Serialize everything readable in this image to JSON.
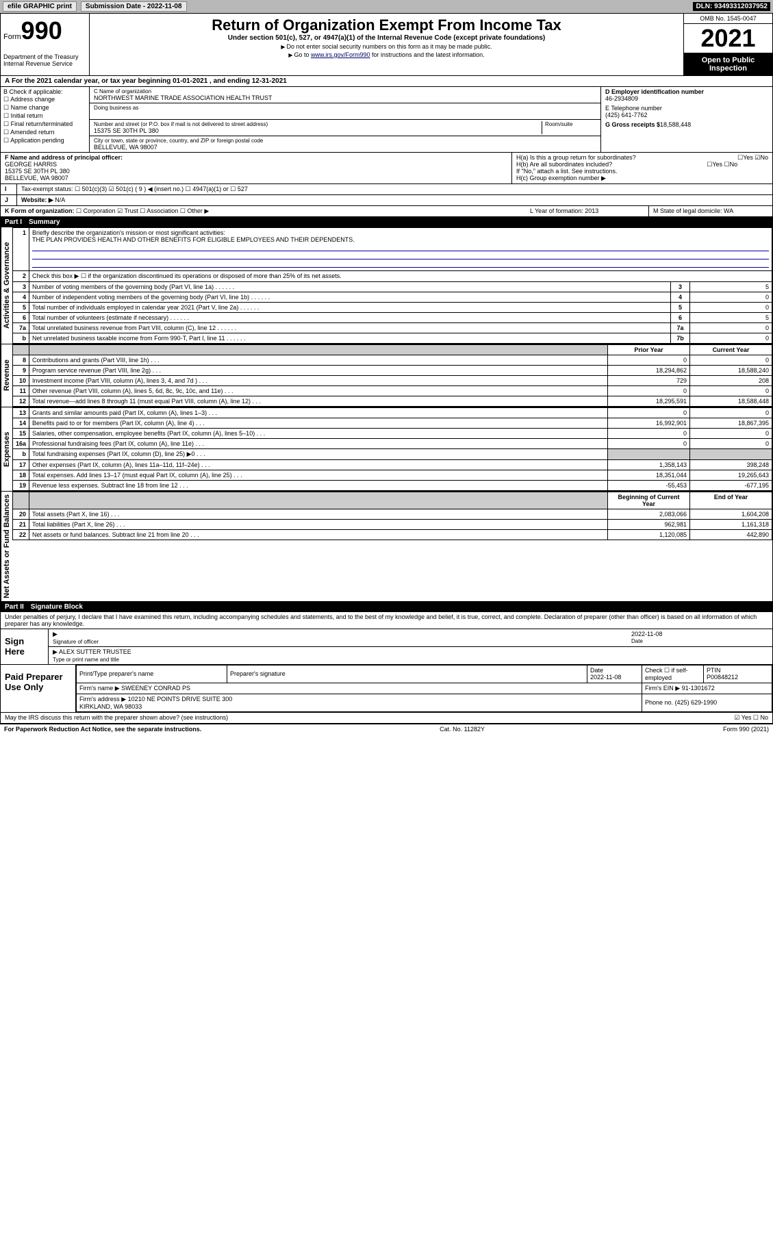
{
  "topbar": {
    "efile": "efile GRAPHIC print",
    "subdate_label": "Submission Date - 2022-11-08",
    "dln": "DLN: 93493312037952"
  },
  "header": {
    "form_label": "Form",
    "form_num": "990",
    "title": "Return of Organization Exempt From Income Tax",
    "subtitle": "Under section 501(c), 527, or 4947(a)(1) of the Internal Revenue Code (except private foundations)",
    "note1": "Do not enter social security numbers on this form as it may be made public.",
    "note2_pre": "Go to ",
    "note2_link": "www.irs.gov/Form990",
    "note2_post": " for instructions and the latest information.",
    "dept": "Department of the Treasury\nInternal Revenue Service",
    "omb": "OMB No. 1545-0047",
    "year": "2021",
    "open": "Open to Public Inspection"
  },
  "row_a": "For the 2021 calendar year, or tax year beginning 01-01-2021   , and ending 12-31-2021",
  "col_b": {
    "label": "B Check if applicable:",
    "opts": [
      "Address change",
      "Name change",
      "Initial return",
      "Final return/terminated",
      "Amended return",
      "Application pending"
    ]
  },
  "col_c": {
    "name_label": "C Name of organization",
    "name": "NORTHWEST MARINE TRADE ASSOCIATION HEALTH TRUST",
    "dba_label": "Doing business as",
    "addr_label": "Number and street (or P.O. box if mail is not delivered to street address)",
    "room_label": "Room/suite",
    "addr": "15375 SE 30TH PL 380",
    "city_label": "City or town, state or province, country, and ZIP or foreign postal code",
    "city": "BELLEVUE, WA  98007"
  },
  "col_d": {
    "ein_label": "D Employer identification number",
    "ein": "46-2934809",
    "tel_label": "E Telephone number",
    "tel": "(425) 641-7762",
    "gross_label": "G Gross receipts $",
    "gross": "18,588,448"
  },
  "row_f": {
    "label": "F  Name and address of principal officer:",
    "name": "GEORGE HARRIS",
    "addr1": "15375 SE 30TH PL 380",
    "addr2": "BELLEVUE, WA  98007"
  },
  "row_h": {
    "ha": "H(a)  Is this a group return for subordinates?",
    "hb": "H(b)  Are all subordinates included?",
    "hb_note": "If \"No,\" attach a list. See instructions.",
    "hc": "H(c)  Group exemption number ▶",
    "yes": "Yes",
    "no": "No"
  },
  "row_i": {
    "label": "Tax-exempt status:",
    "o1": "501(c)(3)",
    "o2": "501(c) ( 9 ) ◀ (insert no.)",
    "o3": "4947(a)(1) or",
    "o4": "527"
  },
  "row_j": {
    "label": "Website: ▶",
    "val": "N/A"
  },
  "row_k": {
    "label": "K Form of organization:",
    "o1": "Corporation",
    "o2": "Trust",
    "o3": "Association",
    "o4": "Other ▶"
  },
  "row_l": {
    "label": "L Year of formation: 2013"
  },
  "row_m": {
    "label": "M State of legal domicile: WA"
  },
  "part1": {
    "num": "Part I",
    "title": "Summary"
  },
  "summary": {
    "q1": "Briefly describe the organization's mission or most significant activities:",
    "q1a": "THE PLAN PROVIDES HEALTH AND OTHER BENEFITS FOR ELIGIBLE EMPLOYEES AND THEIR DEPENDENTS.",
    "q2": "Check this box ▶ ☐  if the organization discontinued its operations or disposed of more than 25% of its net assets.",
    "rows_single": [
      {
        "n": "3",
        "d": "Number of voting members of the governing body (Part VI, line 1a)",
        "b": "3",
        "v": "5"
      },
      {
        "n": "4",
        "d": "Number of independent voting members of the governing body (Part VI, line 1b)",
        "b": "4",
        "v": "0"
      },
      {
        "n": "5",
        "d": "Total number of individuals employed in calendar year 2021 (Part V, line 2a)",
        "b": "5",
        "v": "0"
      },
      {
        "n": "6",
        "d": "Total number of volunteers (estimate if necessary)",
        "b": "6",
        "v": "5"
      },
      {
        "n": "7a",
        "d": "Total unrelated business revenue from Part VIII, column (C), line 12",
        "b": "7a",
        "v": "0"
      },
      {
        "n": "b",
        "d": "Net unrelated business taxable income from Form 990-T, Part I, line 11",
        "b": "7b",
        "v": "0"
      }
    ],
    "col_hdr_prior": "Prior Year",
    "col_hdr_curr": "Current Year",
    "rows_rev": [
      {
        "n": "8",
        "d": "Contributions and grants (Part VIII, line 1h)",
        "p": "0",
        "c": "0"
      },
      {
        "n": "9",
        "d": "Program service revenue (Part VIII, line 2g)",
        "p": "18,294,862",
        "c": "18,588,240"
      },
      {
        "n": "10",
        "d": "Investment income (Part VIII, column (A), lines 3, 4, and 7d )",
        "p": "729",
        "c": "208"
      },
      {
        "n": "11",
        "d": "Other revenue (Part VIII, column (A), lines 5, 6d, 8c, 9c, 10c, and 11e)",
        "p": "0",
        "c": "0"
      },
      {
        "n": "12",
        "d": "Total revenue—add lines 8 through 11 (must equal Part VIII, column (A), line 12)",
        "p": "18,295,591",
        "c": "18,588,448"
      }
    ],
    "rows_exp": [
      {
        "n": "13",
        "d": "Grants and similar amounts paid (Part IX, column (A), lines 1–3)",
        "p": "0",
        "c": "0"
      },
      {
        "n": "14",
        "d": "Benefits paid to or for members (Part IX, column (A), line 4)",
        "p": "16,992,901",
        "c": "18,867,395"
      },
      {
        "n": "15",
        "d": "Salaries, other compensation, employee benefits (Part IX, column (A), lines 5–10)",
        "p": "0",
        "c": "0"
      },
      {
        "n": "16a",
        "d": "Professional fundraising fees (Part IX, column (A), line 11e)",
        "p": "0",
        "c": "0"
      },
      {
        "n": "b",
        "d": "Total fundraising expenses (Part IX, column (D), line 25) ▶0",
        "p": "",
        "c": "",
        "gray": true
      },
      {
        "n": "17",
        "d": "Other expenses (Part IX, column (A), lines 11a–11d, 11f–24e)",
        "p": "1,358,143",
        "c": "398,248"
      },
      {
        "n": "18",
        "d": "Total expenses. Add lines 13–17 (must equal Part IX, column (A), line 25)",
        "p": "18,351,044",
        "c": "19,265,643"
      },
      {
        "n": "19",
        "d": "Revenue less expenses. Subtract line 18 from line 12",
        "p": "-55,453",
        "c": "-677,195"
      }
    ],
    "col_hdr_beg": "Beginning of Current Year",
    "col_hdr_end": "End of Year",
    "rows_net": [
      {
        "n": "20",
        "d": "Total assets (Part X, line 16)",
        "p": "2,083,066",
        "c": "1,604,208"
      },
      {
        "n": "21",
        "d": "Total liabilities (Part X, line 26)",
        "p": "962,981",
        "c": "1,161,318"
      },
      {
        "n": "22",
        "d": "Net assets or fund balances. Subtract line 21 from line 20",
        "p": "1,120,085",
        "c": "442,890"
      }
    ]
  },
  "vlabels": {
    "ag": "Activities & Governance",
    "rev": "Revenue",
    "exp": "Expenses",
    "net": "Net Assets or Fund Balances"
  },
  "part2": {
    "num": "Part II",
    "title": "Signature Block"
  },
  "sig": {
    "penalty": "Under penalties of perjury, I declare that I have examined this return, including accompanying schedules and statements, and to the best of my knowledge and belief, it is true, correct, and complete. Declaration of preparer (other than officer) is based on all information of which preparer has any knowledge.",
    "sign_here": "Sign Here",
    "sig_officer": "Signature of officer",
    "date": "Date",
    "sig_date": "2022-11-08",
    "name_title": "ALEX SUTTER  TRUSTEE",
    "name_title_label": "Type or print name and title",
    "paid": "Paid Preparer Use Only",
    "h1": "Print/Type preparer's name",
    "h2": "Preparer's signature",
    "h3": "Date",
    "h3v": "2022-11-08",
    "h4": "Check ☐ if self-employed",
    "h5": "PTIN",
    "h5v": "P00848212",
    "firm_name_l": "Firm's name  ▶",
    "firm_name": "SWEENEY CONRAD PS",
    "firm_ein_l": "Firm's EIN ▶",
    "firm_ein": "91-1301672",
    "firm_addr_l": "Firm's address ▶",
    "firm_addr": "10210 NE POINTS DRIVE SUITE 300",
    "firm_city": "KIRKLAND, WA  98033",
    "phone_l": "Phone no.",
    "phone": "(425) 629-1990",
    "discuss": "May the IRS discuss this return with the preparer shown above? (see instructions)",
    "yes": "Yes",
    "no": "No"
  },
  "footer": {
    "left": "For Paperwork Reduction Act Notice, see the separate instructions.",
    "mid": "Cat. No. 11282Y",
    "right": "Form 990 (2021)"
  }
}
